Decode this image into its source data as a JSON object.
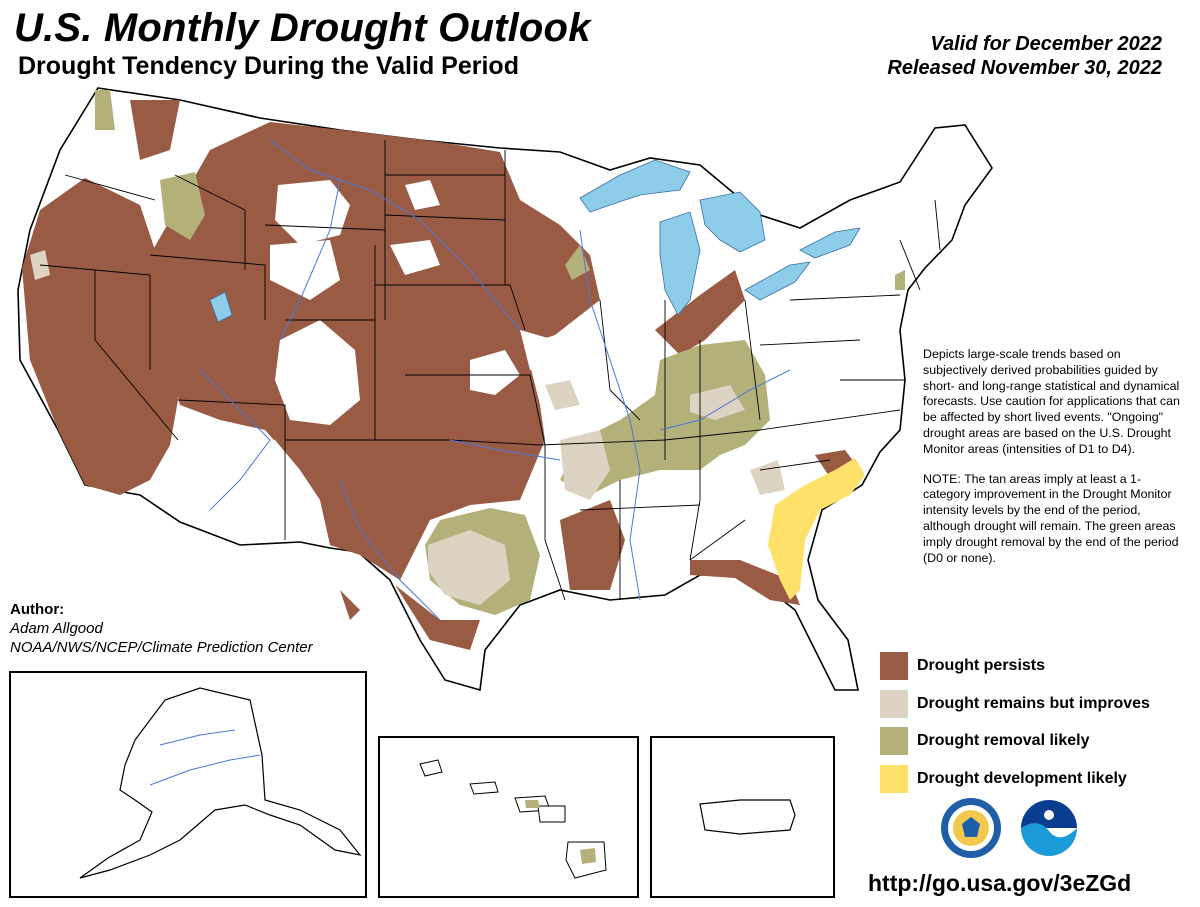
{
  "header": {
    "title": "U.S. Monthly Drought Outlook",
    "subtitle": "Drought Tendency During the Valid Period",
    "valid": "Valid for December 2022",
    "released": "Released November 30, 2022"
  },
  "author": {
    "label": "Author:",
    "name": "Adam Allgood",
    "org": "NOAA/NWS/NCEP/Climate Prediction Center"
  },
  "description": {
    "text": "Depicts large-scale trends based on subjectively derived probabilities guided by short- and long-range statistical and dynamical forecasts. Use caution for applications that can be affected by short lived events. \"Ongoing\" drought areas are based on the U.S. Drought Monitor areas (intensities of D1 to D4).",
    "note": "NOTE: The tan areas imply at least a 1-category improvement in the Drought Monitor intensity levels by the end of the period, although drought will remain. The green areas imply drought removal by the end of the period (D0 or none)."
  },
  "legend": {
    "items": [
      {
        "label": "Drought persists",
        "color": "#9a5b45"
      },
      {
        "label": "Drought remains but improves",
        "color": "#ddd3c3"
      },
      {
        "label": "Drought removal likely",
        "color": "#b4b07a"
      },
      {
        "label": "Drought development likely",
        "color": "#fde169"
      }
    ]
  },
  "colors": {
    "water": "#8ecde9",
    "river": "#4a78d8",
    "border": "#000000"
  },
  "logos": {
    "commerce": "commerce-seal-icon",
    "noaa": "noaa-logo-icon"
  },
  "url": "http://go.usa.gov/3eZGd"
}
